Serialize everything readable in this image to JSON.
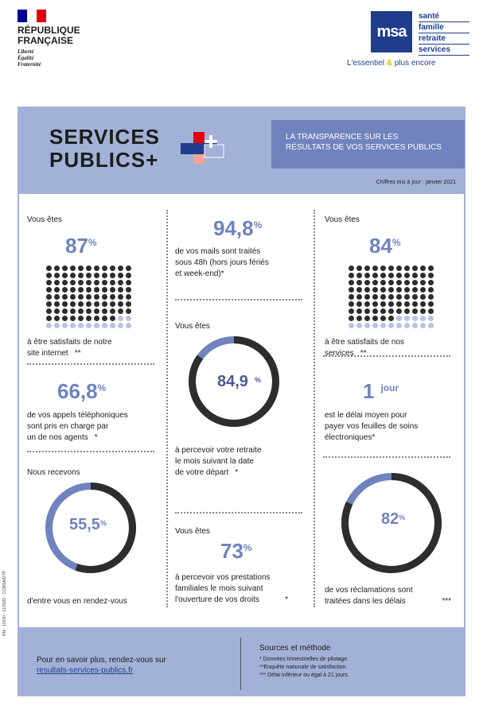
{
  "header": {
    "rf_name_line1": "RÉPUBLIQUE",
    "rf_name_line2": "FRANÇAISE",
    "rf_motto1": "Liberté",
    "rf_motto2": "Égalité",
    "rf_motto3": "Fraternité",
    "msa_logo": "msa",
    "msa_words": [
      "santé",
      "famille",
      "retraite",
      "services"
    ],
    "msa_tagline_a": "L'essentiel",
    "msa_tagline_amp": "&",
    "msa_tagline_b": "plus encore"
  },
  "banner": {
    "title_line1": "SERVICES",
    "title_line2": "PUBLICS+",
    "box_line1": "LA TRANSPARENCE SUR LES",
    "box_line2": "RÉSULTATS DE VOS SERVICES PUBLICS",
    "update": "Chiffres mis à jour : janvier 2021"
  },
  "stats": {
    "site": {
      "intro": "Vous êtes",
      "value": "87",
      "unit": "%",
      "line1": "à être satisfaits de notre",
      "line2": "site internet",
      "note": "**",
      "fraction": 0.87
    },
    "mails": {
      "value": "94,8",
      "unit": "%",
      "line1": "de vos mails sont traités",
      "line2": "sous 48h (hors jours fériés",
      "line3": "et week-end)*"
    },
    "services": {
      "intro": "Vous êtes",
      "value": "84",
      "unit": "%",
      "line1": "à être satisfaits de nos",
      "line2": "services",
      "note": "**",
      "fraction": 0.84
    },
    "retraite": {
      "intro": "Vous êtes",
      "value": "84,9",
      "unit": "%",
      "line1": "à percevoir votre retraite",
      "line2": "le mois suivant la date",
      "line3": "de votre départ",
      "note": "*",
      "fraction": 0.849
    },
    "appels": {
      "value": "66,8",
      "unit": "%",
      "line1": "de vos appels téléphoniques",
      "line2": "sont pris en charge par",
      "line3": "un de nos agents",
      "note": "*"
    },
    "feuilles": {
      "value": "1",
      "unit": "jour",
      "line1": "est le délai moyen pour",
      "line2": "payer vos feuilles de soins",
      "line3": "électroniques*"
    },
    "rdv": {
      "intro": "Nous recevons",
      "value": "55,5",
      "unit": "%",
      "line1": "d'entre vous en rendez-vous",
      "fraction": 0.555
    },
    "prestations": {
      "intro": "Vous êtes",
      "value": "73",
      "unit": "%",
      "line1": "à percevoir vos prestations",
      "line2": "familiales le mois suivant",
      "line3": "l'ouverture de vos droits",
      "note": "*"
    },
    "reclamations": {
      "value": "82",
      "unit": "%",
      "line1": "de vos réclamations sont",
      "line2": "traitées dans les délais",
      "note": "***",
      "fraction": 0.82
    }
  },
  "footer": {
    "more": "Pour en savoir plus, rendez-vous sur",
    "link": "resultats-services-publics.fr",
    "sources_title": "Sources et méthode",
    "note1": "* Données trimestrielles de pilotage.",
    "note2": "**Enquête nationale de satisfaction.",
    "note3": "*** Délai inférieur ou égal à 21 jours."
  },
  "side_code": "RM : 12030 - 11/2020 - CCMSA/DTP",
  "colors": {
    "accent": "#6f83bd",
    "panel": "#a2b1d7",
    "dark": "#2d2d2d",
    "light": "#b9c3e2",
    "red": "#e1000f",
    "navy": "#1f3d8c"
  }
}
